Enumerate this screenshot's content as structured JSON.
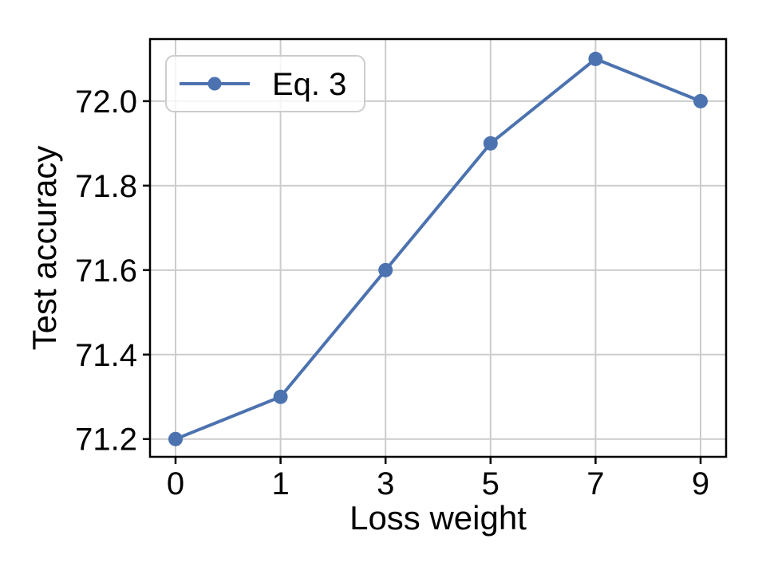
{
  "chart_data": {
    "type": "line",
    "title": "",
    "xlabel": "Loss weight",
    "ylabel": "Test accuracy",
    "categories": [
      "0",
      "1",
      "3",
      "5",
      "7",
      "9"
    ],
    "x_values": [
      0,
      1,
      3,
      5,
      7,
      9
    ],
    "series": [
      {
        "name": "Eq. 3",
        "values": [
          71.2,
          71.3,
          71.6,
          71.9,
          72.1,
          72.0
        ],
        "color": "#4C72B0",
        "marker": "circle"
      }
    ],
    "y_ticks": [
      "71.2",
      "71.4",
      "71.6",
      "71.8",
      "72.0"
    ],
    "y_tick_values": [
      71.2,
      71.4,
      71.6,
      71.8,
      72.0
    ],
    "ylim": [
      71.158,
      72.147
    ],
    "grid": true,
    "legend_position": "upper-left",
    "colors": {
      "background": "#ffffff",
      "grid": "#cccccc",
      "spine": "#000000",
      "text": "#000000",
      "legend_border": "#cccccc",
      "legend_fill": "rgba(255,255,255,0.8)"
    }
  }
}
